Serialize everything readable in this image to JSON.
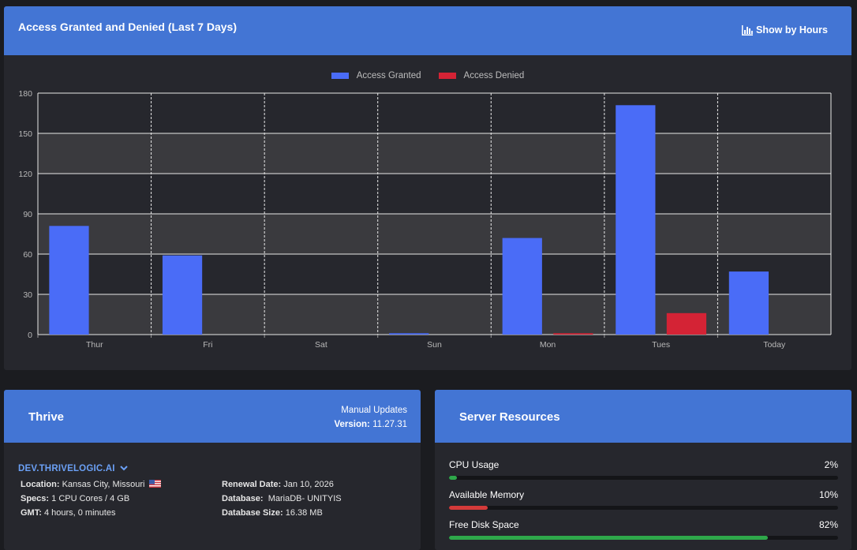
{
  "chart_card": {
    "title": "Access Granted and Denied (Last 7 Days)",
    "show_by_hours_label": "Show by Hours"
  },
  "chart_data": {
    "type": "bar",
    "categories": [
      "Thur",
      "Fri",
      "Sat",
      "Sun",
      "Mon",
      "Tues",
      "Today"
    ],
    "series": [
      {
        "name": "Access Granted",
        "color": "#4a6cf7",
        "values": [
          81,
          59,
          0,
          1,
          72,
          171,
          47
        ]
      },
      {
        "name": "Access Denied",
        "color": "#d42335",
        "values": [
          0,
          0,
          0,
          0,
          1,
          16,
          0
        ]
      }
    ],
    "ylim": [
      0,
      180
    ],
    "yticks": [
      0,
      30,
      60,
      90,
      120,
      150,
      180
    ],
    "legend_position": "top-center",
    "grid": true
  },
  "thrive": {
    "title": "Thrive",
    "updates_label": "Manual Updates",
    "version_label": "Version:",
    "version_value": "11.27.31",
    "domain": "DEV.THRIVELOGIC.AI",
    "location_label": "Location:",
    "location_value": "Kansas City, Missouri",
    "specs_label": "Specs:",
    "specs_value": "1 CPU Cores / 4 GB",
    "gmt_label": "GMT:",
    "gmt_value": "4 hours, 0 minutes",
    "renewal_label": "Renewal Date:",
    "renewal_value": "Jan 10, 2026",
    "database_label": "Database:",
    "database_value": "MariaDB- UNITYIS",
    "dbsize_label": "Database Size:",
    "dbsize_value": "16.38 MB"
  },
  "server": {
    "title": "Server Resources",
    "resources": [
      {
        "label": "CPU Usage",
        "value": "2%",
        "percent": 2,
        "color": "#2ea84a"
      },
      {
        "label": "Available Memory",
        "value": "10%",
        "percent": 10,
        "color": "#d43a3a"
      },
      {
        "label": "Free Disk Space",
        "value": "82%",
        "percent": 82,
        "color": "#2ea84a"
      }
    ]
  }
}
